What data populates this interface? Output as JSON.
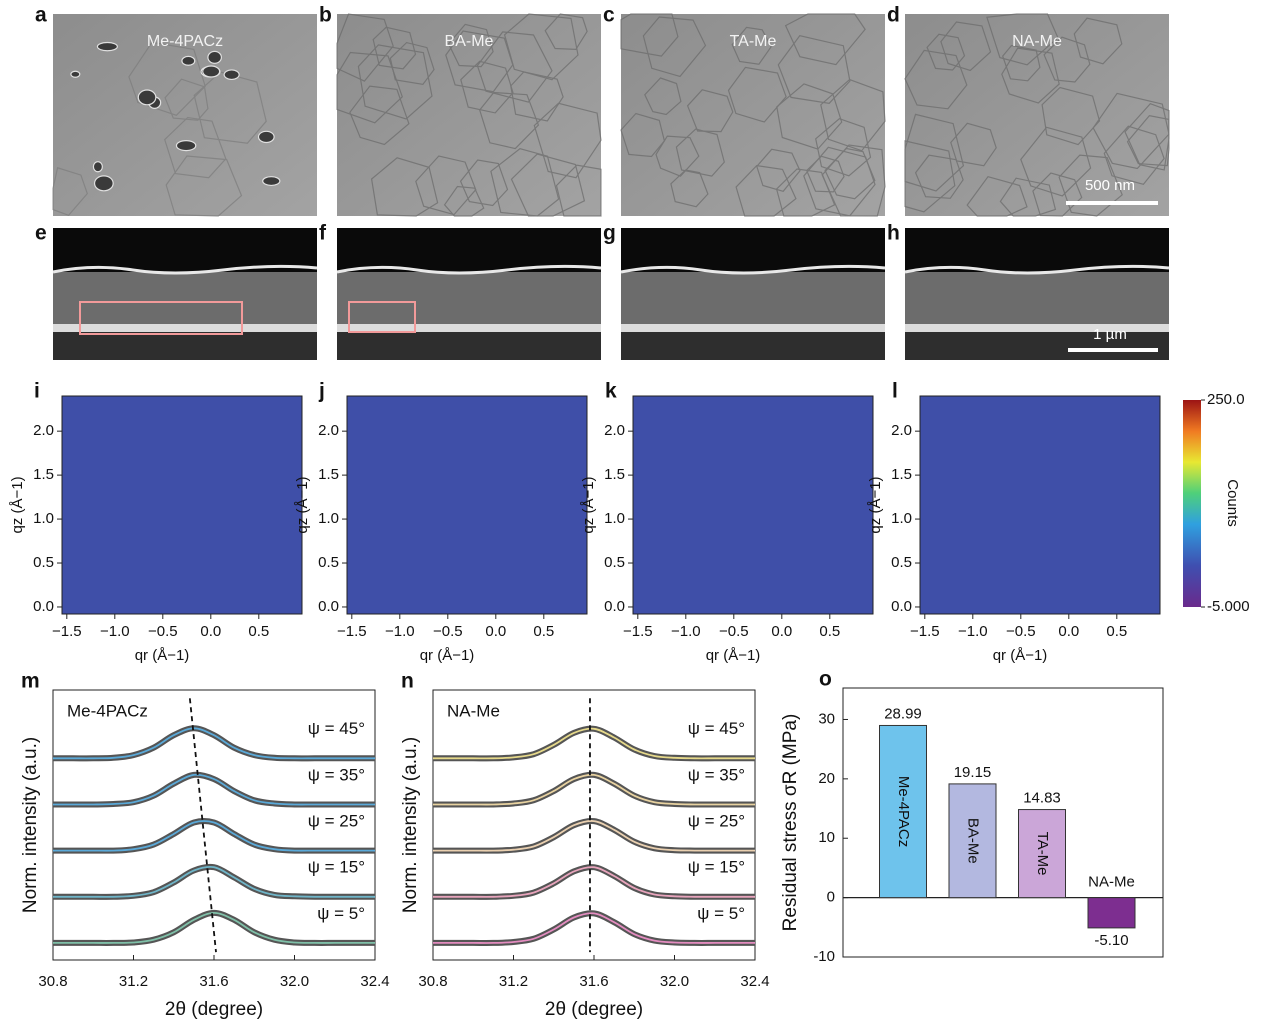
{
  "sem_panels": [
    {
      "letter": "a",
      "label": "Me-4PACz"
    },
    {
      "letter": "b",
      "label": "BA-Me"
    },
    {
      "letter": "c",
      "label": "TA-Me"
    },
    {
      "letter": "d",
      "label": "NA-Me"
    }
  ],
  "sem_scale_bar": "500 nm",
  "cross_section_panels": [
    "e",
    "f",
    "g",
    "h"
  ],
  "cross_section_scale_bar": "1 µm",
  "chart_data": [
    {
      "type": "heatmap",
      "panels": [
        "i",
        "j",
        "k",
        "l"
      ],
      "xlabel": "qr (Å−1)",
      "ylabel": "qz (Å−1)",
      "xlim": [
        -1.55,
        0.95
      ],
      "ylim": [
        -0.08,
        2.4
      ],
      "xticks": [
        {
          "value": -1.5,
          "label": "−1.5"
        },
        {
          "value": -1,
          "label": "−1.0"
        },
        {
          "value": -0.5,
          "label": "−0.5"
        },
        {
          "value": 0,
          "label": "0.0"
        },
        0.5
      ],
      "yticks": [
        {
          "value": 0,
          "label": "0.0"
        },
        0.5,
        {
          "value": 1,
          "label": "1.0"
        },
        1.5,
        {
          "value": 2,
          "label": "2.0"
        }
      ],
      "colorbar": {
        "label": "Counts",
        "range": [
          -5,
          250
        ],
        "ticks": [
          {
            "value": 250,
            "label": "250.0"
          },
          {
            "value": -5,
            "label": "-5.000"
          }
        ]
      }
    },
    {
      "type": "line",
      "panel": "m",
      "title": "Me-4PACz",
      "xlabel": "2θ (degree)",
      "ylabel": "Norm. intensity (a.u.)",
      "xlim": [
        30.8,
        32.4
      ],
      "ylim": [
        -0.37,
        5.48
      ],
      "xticks": [
        30.8,
        31.2,
        31.6,
        {
          "value": 32,
          "label": "32.0"
        },
        32.4
      ],
      "x": [
        30.8,
        30.9,
        31.0,
        31.1,
        31.2,
        31.3,
        31.4,
        31.5,
        31.6,
        31.7,
        31.8,
        31.9,
        32.0,
        32.1,
        32.2,
        32.3,
        32.4
      ],
      "series": [
        {
          "name": "ψ = 45°",
          "color": "#5aa9d8",
          "values": [
            4,
            4,
            4,
            4.01,
            4.07,
            4.23,
            4.5,
            4.65,
            4.5,
            4.23,
            4.07,
            4.01,
            4,
            4,
            4,
            4,
            4
          ]
        },
        {
          "name": "ψ = 35°",
          "color": "#5aa9d8",
          "values": [
            3,
            3,
            3,
            3.01,
            3.05,
            3.19,
            3.45,
            3.64,
            3.55,
            3.29,
            3.09,
            3.02,
            3,
            3,
            3,
            3,
            3
          ]
        },
        {
          "name": "ψ = 25°",
          "color": "#5aa9d8",
          "values": [
            2,
            2,
            2,
            2,
            2.03,
            2.13,
            2.36,
            2.61,
            2.61,
            2.36,
            2.13,
            2.03,
            2,
            2,
            2,
            2,
            2
          ]
        },
        {
          "name": "ψ = 15°",
          "color": "#6fb5c8",
          "values": [
            1,
            1,
            1,
            1,
            1.02,
            1.1,
            1.31,
            1.57,
            1.64,
            1.42,
            1.17,
            1.04,
            1.01,
            1,
            1,
            1,
            1
          ]
        },
        {
          "name": "ψ = 5°",
          "color": "#7fc0a8",
          "values": [
            0,
            0,
            0,
            0,
            0.01,
            0.07,
            0.23,
            0.5,
            0.65,
            0.5,
            0.23,
            0.07,
            0.01,
            0,
            0,
            0,
            0
          ]
        }
      ],
      "guide_line": {
        "x": [
          31.48,
          31.61
        ],
        "y": [
          5.3,
          -0.2
        ]
      }
    },
    {
      "type": "line",
      "panel": "n",
      "title": "NA-Me",
      "xlabel": "2θ (degree)",
      "ylabel": "Norm. intensity (a.u.)",
      "xlim": [
        30.8,
        32.4
      ],
      "ylim": [
        -0.37,
        5.48
      ],
      "xticks": [
        30.8,
        31.2,
        31.6,
        {
          "value": 32,
          "label": "32.0"
        },
        32.4
      ],
      "x": [
        30.8,
        30.9,
        31.0,
        31.1,
        31.2,
        31.3,
        31.4,
        31.5,
        31.6,
        31.7,
        31.8,
        31.9,
        32.0,
        32.1,
        32.2,
        32.3,
        32.4
      ],
      "series": [
        {
          "name": "ψ = 45°",
          "color": "#e6d98a",
          "values": [
            4,
            4,
            4,
            4,
            4.02,
            4.09,
            4.29,
            4.55,
            4.64,
            4.45,
            4.19,
            4.05,
            4.01,
            4,
            4,
            4,
            4
          ]
        },
        {
          "name": "ψ = 35°",
          "color": "#e8d2a0",
          "values": [
            3,
            3,
            3,
            3,
            3.02,
            3.09,
            3.29,
            3.55,
            3.64,
            3.45,
            3.19,
            3.05,
            3.01,
            3,
            3,
            3,
            3
          ]
        },
        {
          "name": "ψ = 25°",
          "color": "#ead0b0",
          "values": [
            2,
            2,
            2,
            2,
            2.02,
            2.09,
            2.29,
            2.55,
            2.64,
            2.45,
            2.19,
            2.05,
            2.01,
            2,
            2,
            2,
            2
          ]
        },
        {
          "name": "ψ = 15°",
          "color": "#e8a4bc",
          "values": [
            1,
            1,
            1,
            1,
            1.02,
            1.09,
            1.29,
            1.55,
            1.64,
            1.45,
            1.19,
            1.05,
            1.01,
            1,
            1,
            1,
            1
          ]
        },
        {
          "name": "ψ = 5°",
          "color": "#e48cc0",
          "values": [
            0,
            0,
            0,
            0,
            0.02,
            0.09,
            0.29,
            0.55,
            0.64,
            0.45,
            0.19,
            0.05,
            0.01,
            0,
            0,
            0,
            0
          ]
        }
      ],
      "guide_line": {
        "x": [
          31.58,
          31.58
        ],
        "y": [
          5.3,
          -0.2
        ]
      }
    },
    {
      "type": "bar",
      "panel": "o",
      "ylabel": "Residual stress σR (MPa)",
      "categories": [
        "Me-4PACz",
        "BA-Me",
        "TA-Me",
        "NA-Me"
      ],
      "values": [
        28.99,
        19.15,
        14.83,
        -5.1
      ],
      "value_labels": [
        "28.99",
        "19.15",
        "14.83",
        "-5.10"
      ],
      "colors": [
        "#6ec3ec",
        "#b3b8e0",
        "#cba6d8",
        "#7d2e90"
      ],
      "ylim": [
        -10,
        35.3
      ],
      "yticks": [
        -10,
        0,
        10,
        20,
        30
      ]
    }
  ]
}
